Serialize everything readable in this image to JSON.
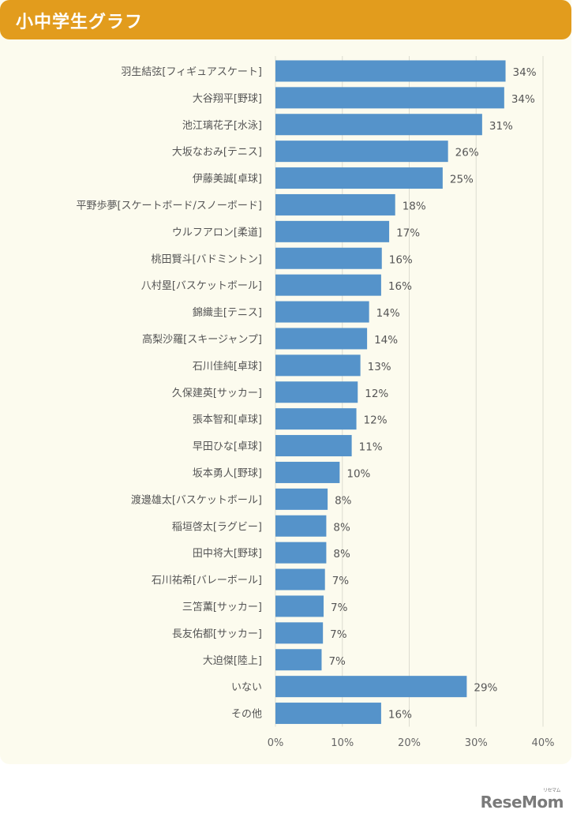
{
  "header": {
    "title": "小中学生グラフ"
  },
  "logo": {
    "text": "ReseMom",
    "ruby": "リセマム"
  },
  "chart_data": {
    "type": "bar",
    "orientation": "horizontal",
    "title": "小中学生グラフ",
    "categories": [
      "羽生結弦[フィギュアスケート]",
      "大谷翔平[野球]",
      "池江璃花子[水泳]",
      "大坂なおみ[テニス]",
      "伊藤美誠[卓球]",
      "平野歩夢[スケートボード/スノーボード]",
      "ウルフアロン[柔道]",
      "桃田賢斗[バドミントン]",
      "八村塁[バスケットボール]",
      "錦織圭[テニス]",
      "高梨沙羅[スキージャンプ]",
      "石川佳純[卓球]",
      "久保建英[サッカー]",
      "張本智和[卓球]",
      "早田ひな[卓球]",
      "坂本勇人[野球]",
      "渡邊雄太[バスケットボール]",
      "稲垣啓太[ラグビー]",
      "田中将大[野球]",
      "石川祐希[バレーボール]",
      "三笘薫[サッカー]",
      "長友佑都[サッカー]",
      "大迫傑[陸上]",
      "いない",
      "その他"
    ],
    "values": [
      34.4,
      34.2,
      30.9,
      25.8,
      25.0,
      17.9,
      17.0,
      15.9,
      15.8,
      14.0,
      13.7,
      12.7,
      12.3,
      12.1,
      11.4,
      9.6,
      7.8,
      7.6,
      7.6,
      7.4,
      7.2,
      7.1,
      6.9,
      28.6,
      15.8
    ],
    "data_labels": [
      "34%",
      "34%",
      "31%",
      "26%",
      "25%",
      "18%",
      "17%",
      "16%",
      "16%",
      "14%",
      "14%",
      "13%",
      "12%",
      "12%",
      "11%",
      "10%",
      "8%",
      "8%",
      "8%",
      "7%",
      "7%",
      "7%",
      "7%",
      "29%",
      "16%"
    ],
    "xlim": [
      0,
      40
    ],
    "xticks": [
      "0%",
      "10%",
      "20%",
      "30%",
      "40%"
    ],
    "grid": true,
    "bar_color": "#5593ca"
  }
}
